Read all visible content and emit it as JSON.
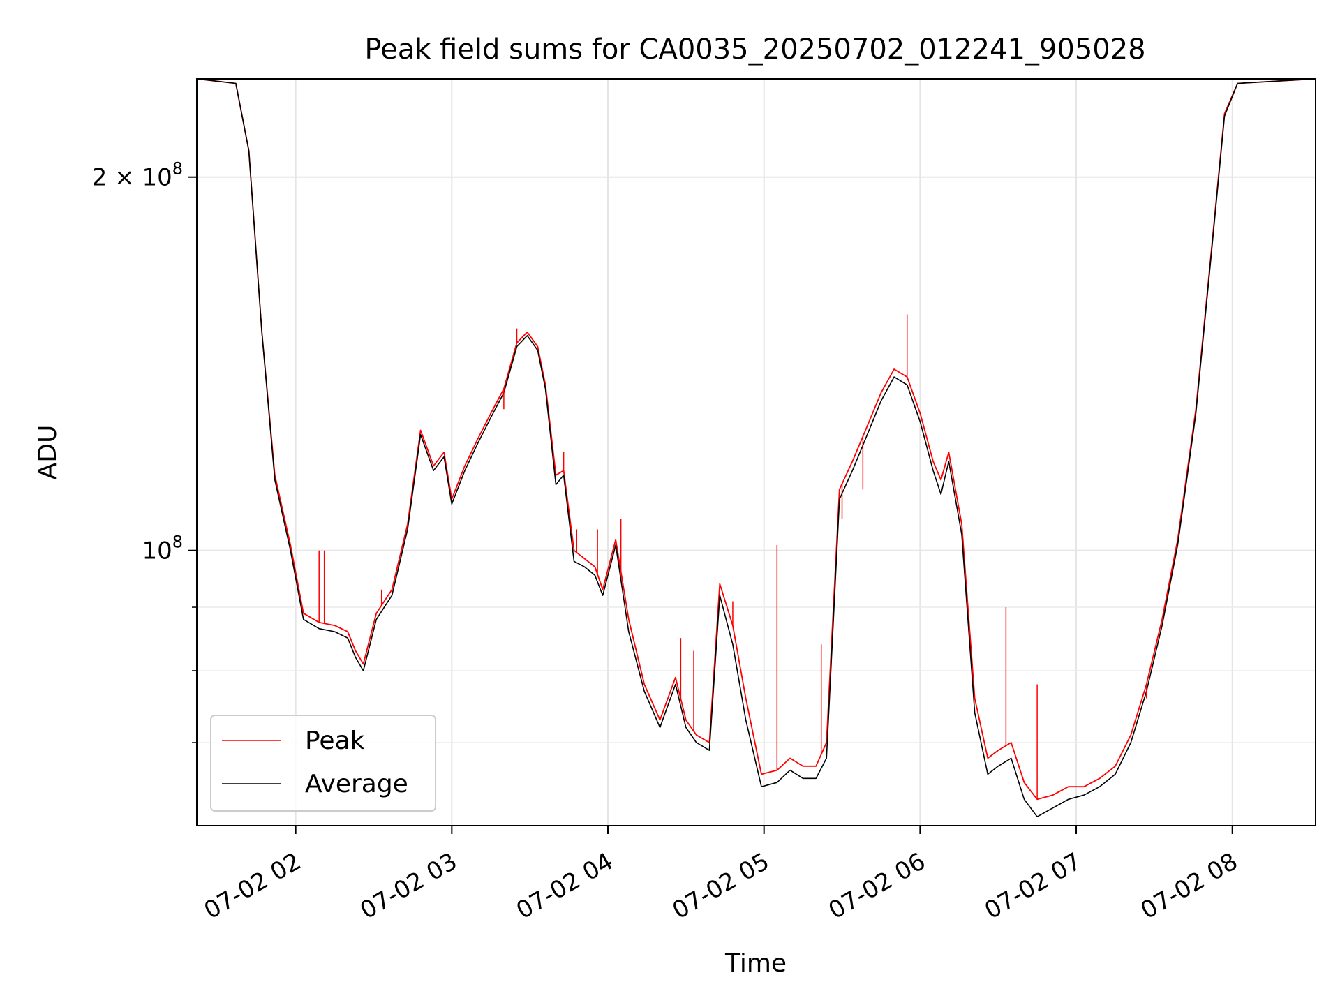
{
  "chart_data": {
    "type": "line",
    "title": "Peak field sums for CA0035_20250702_012241_905028",
    "xlabel": "Time",
    "ylabel": "ADU",
    "yscale": "log",
    "xlim": [
      "2025-07-02 01:22",
      "2025-07-02 08:32"
    ],
    "ylim": [
      60000000,
      240000000
    ],
    "grid": true,
    "legend_position": "lower-left",
    "x_ticks": [
      {
        "time": "2025-07-02 02:00",
        "label": "07-02 02"
      },
      {
        "time": "2025-07-02 03:00",
        "label": "07-02 03"
      },
      {
        "time": "2025-07-02 04:00",
        "label": "07-02 04"
      },
      {
        "time": "2025-07-02 05:00",
        "label": "07-02 05"
      },
      {
        "time": "2025-07-02 06:00",
        "label": "07-02 06"
      },
      {
        "time": "2025-07-02 07:00",
        "label": "07-02 07"
      },
      {
        "time": "2025-07-02 08:00",
        "label": "07-02 08"
      }
    ],
    "y_major_ticks": [
      {
        "value": 100000000,
        "base": "10",
        "exp": "8"
      },
      {
        "value": 200000000,
        "mantissa": "2 × ",
        "base": "10",
        "exp": "8"
      }
    ],
    "y_minor_ticks": [
      70000000,
      80000000,
      90000000
    ],
    "series": [
      {
        "name": "Peak",
        "color": "#ff0000",
        "points": [
          [
            "2025-07-02 01:22",
            240000000
          ],
          [
            "2025-07-02 01:37",
            238000000
          ],
          [
            "2025-07-02 01:42",
            210000000
          ],
          [
            "2025-07-02 01:47",
            150000000
          ],
          [
            "2025-07-02 01:52",
            115000000
          ],
          [
            "2025-07-02 01:58",
            101000000
          ],
          [
            "2025-07-02 02:03",
            89000000
          ],
          [
            "2025-07-02 02:09",
            87500000
          ],
          [
            "2025-07-02 02:15",
            87000000
          ],
          [
            "2025-07-02 02:20",
            86000000
          ],
          [
            "2025-07-02 02:23",
            83000000
          ],
          [
            "2025-07-02 02:26",
            81000000
          ],
          [
            "2025-07-02 02:31",
            89000000
          ],
          [
            "2025-07-02 02:37",
            93000000
          ],
          [
            "2025-07-02 02:43",
            105000000
          ],
          [
            "2025-07-02 02:48",
            125000000
          ],
          [
            "2025-07-02 02:53",
            117000000
          ],
          [
            "2025-07-02 02:57",
            120000000
          ],
          [
            "2025-07-02 03:00",
            110000000
          ],
          [
            "2025-07-02 03:05",
            117000000
          ],
          [
            "2025-07-02 03:10",
            123000000
          ],
          [
            "2025-07-02 03:15",
            129000000
          ],
          [
            "2025-07-02 03:20",
            135000000
          ],
          [
            "2025-07-02 03:25",
            147000000
          ],
          [
            "2025-07-02 03:29",
            150000000
          ],
          [
            "2025-07-02 03:33",
            146000000
          ],
          [
            "2025-07-02 03:36",
            136000000
          ],
          [
            "2025-07-02 03:40",
            115000000
          ],
          [
            "2025-07-02 03:43",
            116000000
          ],
          [
            "2025-07-02 03:47",
            100000000
          ],
          [
            "2025-07-02 03:51",
            98500000
          ],
          [
            "2025-07-02 03:55",
            97000000
          ],
          [
            "2025-07-02 03:58",
            93000000
          ],
          [
            "2025-07-02 04:03",
            102000000
          ],
          [
            "2025-07-02 04:08",
            88000000
          ],
          [
            "2025-07-02 04:14",
            78000000
          ],
          [
            "2025-07-02 04:20",
            73000000
          ],
          [
            "2025-07-02 04:26",
            79000000
          ],
          [
            "2025-07-02 04:30",
            73000000
          ],
          [
            "2025-07-02 04:34",
            71000000
          ],
          [
            "2025-07-02 04:39",
            70000000
          ],
          [
            "2025-07-02 04:43",
            94000000
          ],
          [
            "2025-07-02 04:48",
            87000000
          ],
          [
            "2025-07-02 04:53",
            76000000
          ],
          [
            "2025-07-02 04:59",
            66000000
          ],
          [
            "2025-07-02 05:05",
            66500000
          ],
          [
            "2025-07-02 05:10",
            68000000
          ],
          [
            "2025-07-02 05:15",
            67000000
          ],
          [
            "2025-07-02 05:20",
            67000000
          ],
          [
            "2025-07-02 05:24",
            70000000
          ],
          [
            "2025-07-02 05:29",
            112000000
          ],
          [
            "2025-07-02 05:34",
            118000000
          ],
          [
            "2025-07-02 05:39",
            125000000
          ],
          [
            "2025-07-02 05:45",
            134000000
          ],
          [
            "2025-07-02 05:50",
            140000000
          ],
          [
            "2025-07-02 05:55",
            138000000
          ],
          [
            "2025-07-02 06:00",
            129000000
          ],
          [
            "2025-07-02 06:05",
            118000000
          ],
          [
            "2025-07-02 06:08",
            114000000
          ],
          [
            "2025-07-02 06:11",
            120000000
          ],
          [
            "2025-07-02 06:16",
            105000000
          ],
          [
            "2025-07-02 06:21",
            76000000
          ],
          [
            "2025-07-02 06:26",
            68000000
          ],
          [
            "2025-07-02 06:30",
            69000000
          ],
          [
            "2025-07-02 06:35",
            70000000
          ],
          [
            "2025-07-02 06:40",
            65000000
          ],
          [
            "2025-07-02 06:45",
            63000000
          ],
          [
            "2025-07-02 06:51",
            63500000
          ],
          [
            "2025-07-02 06:57",
            64500000
          ],
          [
            "2025-07-02 07:03",
            64500000
          ],
          [
            "2025-07-02 07:09",
            65500000
          ],
          [
            "2025-07-02 07:15",
            67000000
          ],
          [
            "2025-07-02 07:21",
            71000000
          ],
          [
            "2025-07-02 07:27",
            78000000
          ],
          [
            "2025-07-02 07:33",
            88000000
          ],
          [
            "2025-07-02 07:39",
            102000000
          ],
          [
            "2025-07-02 07:46",
            130000000
          ],
          [
            "2025-07-02 07:52",
            175000000
          ],
          [
            "2025-07-02 07:57",
            225000000
          ],
          [
            "2025-07-02 08:02",
            238000000
          ],
          [
            "2025-07-02 08:32",
            240000000
          ]
        ]
      },
      {
        "name": "Average",
        "color": "#000000",
        "points": [
          [
            "2025-07-02 01:22",
            240000000
          ],
          [
            "2025-07-02 01:37",
            238000000
          ],
          [
            "2025-07-02 01:42",
            210000000
          ],
          [
            "2025-07-02 01:47",
            150000000
          ],
          [
            "2025-07-02 01:52",
            114000000
          ],
          [
            "2025-07-02 01:58",
            100000000
          ],
          [
            "2025-07-02 02:03",
            88000000
          ],
          [
            "2025-07-02 02:09",
            86500000
          ],
          [
            "2025-07-02 02:15",
            86000000
          ],
          [
            "2025-07-02 02:20",
            85000000
          ],
          [
            "2025-07-02 02:23",
            82000000
          ],
          [
            "2025-07-02 02:26",
            80000000
          ],
          [
            "2025-07-02 02:31",
            88000000
          ],
          [
            "2025-07-02 02:37",
            92000000
          ],
          [
            "2025-07-02 02:43",
            104000000
          ],
          [
            "2025-07-02 02:48",
            124000000
          ],
          [
            "2025-07-02 02:53",
            116000000
          ],
          [
            "2025-07-02 02:57",
            119000000
          ],
          [
            "2025-07-02 03:00",
            109000000
          ],
          [
            "2025-07-02 03:05",
            116000000
          ],
          [
            "2025-07-02 03:10",
            122000000
          ],
          [
            "2025-07-02 03:15",
            128000000
          ],
          [
            "2025-07-02 03:20",
            134000000
          ],
          [
            "2025-07-02 03:25",
            146000000
          ],
          [
            "2025-07-02 03:29",
            149000000
          ],
          [
            "2025-07-02 03:33",
            145000000
          ],
          [
            "2025-07-02 03:36",
            135000000
          ],
          [
            "2025-07-02 03:40",
            113000000
          ],
          [
            "2025-07-02 03:43",
            115000000
          ],
          [
            "2025-07-02 03:47",
            98000000
          ],
          [
            "2025-07-02 03:51",
            97000000
          ],
          [
            "2025-07-02 03:55",
            95500000
          ],
          [
            "2025-07-02 03:58",
            92000000
          ],
          [
            "2025-07-02 04:03",
            101000000
          ],
          [
            "2025-07-02 04:08",
            86000000
          ],
          [
            "2025-07-02 04:14",
            77000000
          ],
          [
            "2025-07-02 04:20",
            72000000
          ],
          [
            "2025-07-02 04:26",
            78000000
          ],
          [
            "2025-07-02 04:30",
            72000000
          ],
          [
            "2025-07-02 04:34",
            70000000
          ],
          [
            "2025-07-02 04:39",
            69000000
          ],
          [
            "2025-07-02 04:43",
            92000000
          ],
          [
            "2025-07-02 04:48",
            84000000
          ],
          [
            "2025-07-02 04:53",
            73000000
          ],
          [
            "2025-07-02 04:59",
            64500000
          ],
          [
            "2025-07-02 05:05",
            65000000
          ],
          [
            "2025-07-02 05:10",
            66500000
          ],
          [
            "2025-07-02 05:15",
            65500000
          ],
          [
            "2025-07-02 05:20",
            65500000
          ],
          [
            "2025-07-02 05:24",
            68000000
          ],
          [
            "2025-07-02 05:29",
            110000000
          ],
          [
            "2025-07-02 05:34",
            116000000
          ],
          [
            "2025-07-02 05:39",
            123000000
          ],
          [
            "2025-07-02 05:45",
            132000000
          ],
          [
            "2025-07-02 05:50",
            138000000
          ],
          [
            "2025-07-02 05:55",
            136000000
          ],
          [
            "2025-07-02 06:00",
            127000000
          ],
          [
            "2025-07-02 06:05",
            116000000
          ],
          [
            "2025-07-02 06:08",
            111000000
          ],
          [
            "2025-07-02 06:11",
            118000000
          ],
          [
            "2025-07-02 06:16",
            103000000
          ],
          [
            "2025-07-02 06:21",
            74000000
          ],
          [
            "2025-07-02 06:26",
            66000000
          ],
          [
            "2025-07-02 06:30",
            67000000
          ],
          [
            "2025-07-02 06:35",
            68000000
          ],
          [
            "2025-07-02 06:40",
            63000000
          ],
          [
            "2025-07-02 06:45",
            61000000
          ],
          [
            "2025-07-02 06:51",
            62000000
          ],
          [
            "2025-07-02 06:57",
            63000000
          ],
          [
            "2025-07-02 07:03",
            63500000
          ],
          [
            "2025-07-02 07:09",
            64500000
          ],
          [
            "2025-07-02 07:15",
            66000000
          ],
          [
            "2025-07-02 07:21",
            70000000
          ],
          [
            "2025-07-02 07:27",
            77000000
          ],
          [
            "2025-07-02 07:33",
            87000000
          ],
          [
            "2025-07-02 07:39",
            101000000
          ],
          [
            "2025-07-02 07:46",
            129000000
          ],
          [
            "2025-07-02 07:52",
            174000000
          ],
          [
            "2025-07-02 07:57",
            224000000
          ],
          [
            "2025-07-02 08:02",
            238000000
          ],
          [
            "2025-07-02 08:32",
            240000000
          ]
        ]
      }
    ],
    "peak_spikes": [
      [
        "2025-07-02 02:09",
        100000000
      ],
      [
        "2025-07-02 02:11",
        100000000
      ],
      [
        "2025-07-02 02:33",
        93000000
      ],
      [
        "2025-07-02 03:20",
        130000000
      ],
      [
        "2025-07-02 03:25",
        151000000
      ],
      [
        "2025-07-02 03:43",
        120000000
      ],
      [
        "2025-07-02 03:48",
        104000000
      ],
      [
        "2025-07-02 03:56",
        104000000
      ],
      [
        "2025-07-02 04:05",
        106000000
      ],
      [
        "2025-07-02 04:28",
        85000000
      ],
      [
        "2025-07-02 04:33",
        83000000
      ],
      [
        "2025-07-02 04:48",
        91000000
      ],
      [
        "2025-07-02 05:05",
        101000000
      ],
      [
        "2025-07-02 05:22",
        84000000
      ],
      [
        "2025-07-02 05:30",
        106000000
      ],
      [
        "2025-07-02 05:38",
        112000000
      ],
      [
        "2025-07-02 05:55",
        155000000
      ],
      [
        "2025-07-02 06:33",
        90000000
      ],
      [
        "2025-07-02 06:45",
        78000000
      ],
      [
        "2025-07-02 07:27",
        76000000
      ]
    ]
  }
}
